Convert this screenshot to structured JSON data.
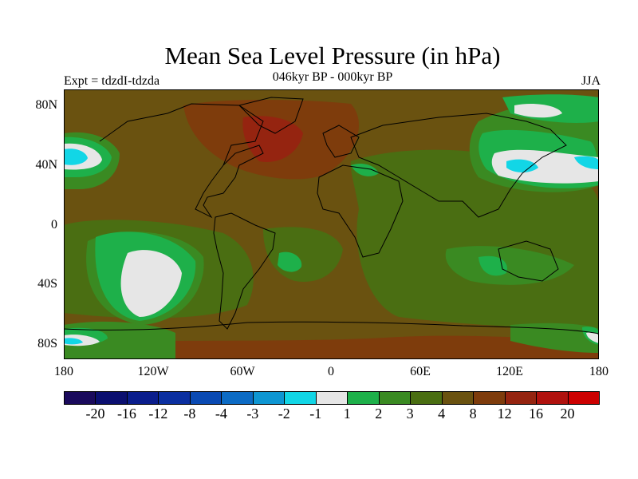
{
  "title": "Mean Sea Level Pressure (in hPa)",
  "experiment": "Expt = tdzdI-tdzda",
  "period": "046kyr BP - 000kyr BP",
  "season": "JJA",
  "lat_labels": [
    "80N",
    "40N",
    "0",
    "40S",
    "80S"
  ],
  "lon_labels": [
    "180",
    "120W",
    "60W",
    "0",
    "60E",
    "120E",
    "180"
  ],
  "colorbar": {
    "colors": [
      "#1a0a5c",
      "#0b0f70",
      "#0a1d8c",
      "#0b2fa0",
      "#0a4ab3",
      "#0c6bc4",
      "#0e96d2",
      "#12d6e6",
      "#e6e6e6",
      "#1eb04a",
      "#3a8a22",
      "#4a6e12",
      "#6a5210",
      "#7e3c0c",
      "#952410",
      "#b0120e",
      "#cc0000"
    ],
    "labels": [
      "-20",
      "-16",
      "-12",
      "-8",
      "-4",
      "-3",
      "-2",
      "-1",
      "1",
      "2",
      "3",
      "4",
      "8",
      "12",
      "16",
      "20"
    ]
  }
}
